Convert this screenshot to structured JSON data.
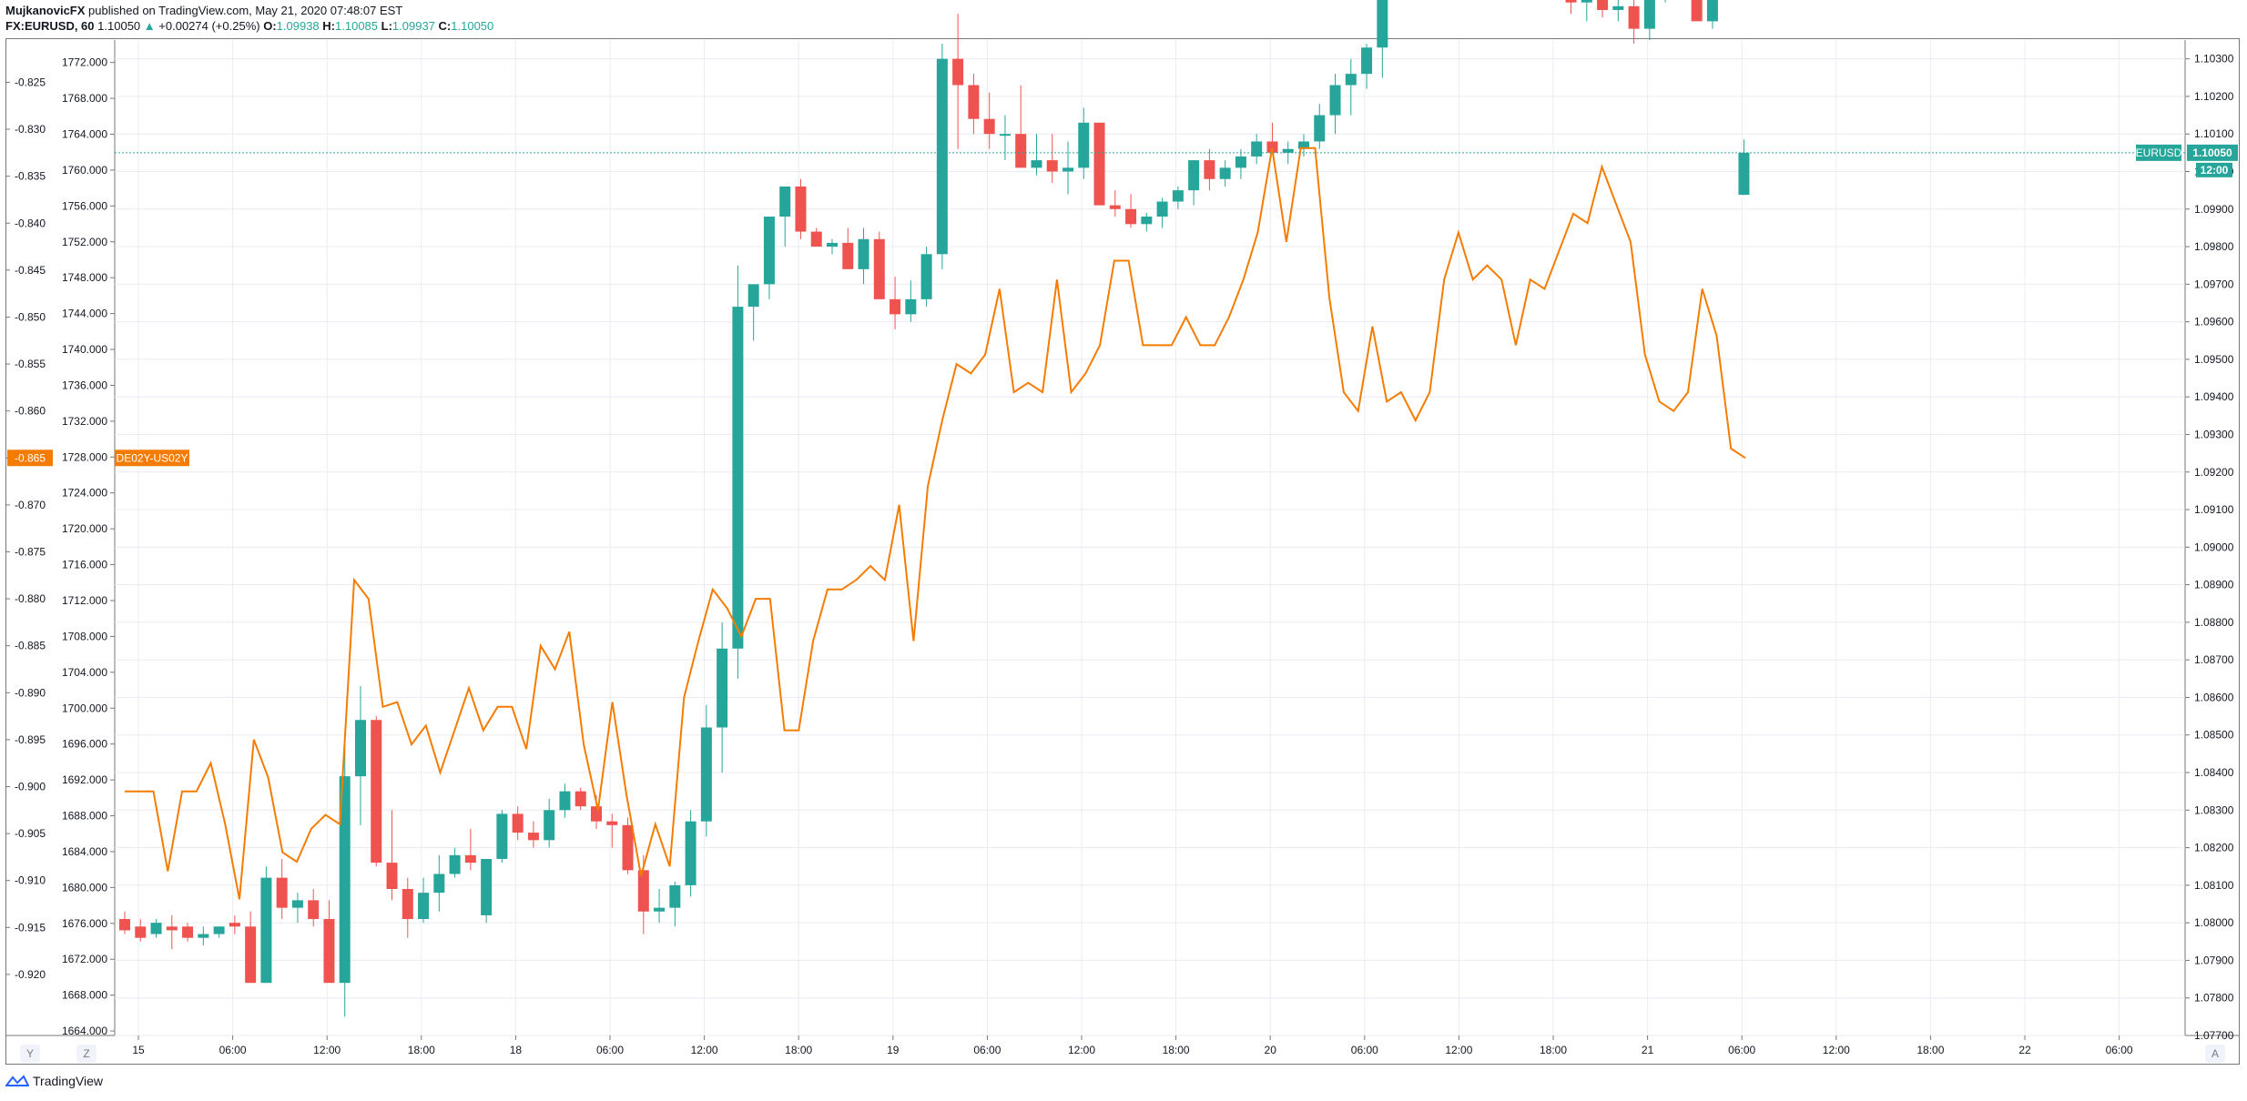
{
  "header": {
    "author": "MujkanovicFX",
    "published": "published on TradingView.com, May 21, 2020 07:48:07 EST",
    "symbol": "FX:EURUSD, 60",
    "last": "1.10050",
    "change_arrow": "▲",
    "change": "+0.00274 (+0.25%)",
    "o_label": "O:",
    "o_value": "1.09938",
    "h_label": "H:",
    "h_value": "1.10085",
    "l_label": "L:",
    "l_value": "1.09937",
    "c_label": "C:",
    "c_value": "1.10050"
  },
  "buttons": {
    "y": "Y",
    "z": "Z",
    "a": "A"
  },
  "footer": {
    "brand": "TradingView"
  },
  "colors": {
    "up": "#26a69a",
    "down": "#ef5350",
    "spread": "#f57c00",
    "grid": "#e9ecf2"
  },
  "chart_data": {
    "type": "candlestick",
    "series_primary": {
      "name": "EURUSD",
      "last_label": "1.10050",
      "countdown": "12:00",
      "axis": "right",
      "ylim": [
        1.077,
        1.1035
      ]
    },
    "series_overlay": {
      "name": "DE02Y-US02Y",
      "last_label": "-0.865",
      "axis": "left-outer",
      "ylim": [
        -0.9265,
        -0.8205
      ]
    },
    "middle_axis": {
      "ylim": [
        1663.5,
        1774.5
      ]
    },
    "left_ticks": [
      "-0.825",
      "-0.830",
      "-0.835",
      "-0.840",
      "-0.845",
      "-0.850",
      "-0.855",
      "-0.860",
      "-0.865",
      "-0.870",
      "-0.875",
      "-0.880",
      "-0.885",
      "-0.890",
      "-0.895",
      "-0.900",
      "-0.905",
      "-0.910",
      "-0.915",
      "-0.920"
    ],
    "middle_ticks": [
      "1772.000",
      "1768.000",
      "1764.000",
      "1760.000",
      "1756.000",
      "1752.000",
      "1748.000",
      "1744.000",
      "1740.000",
      "1736.000",
      "1732.000",
      "1728.000",
      "1724.000",
      "1720.000",
      "1716.000",
      "1712.000",
      "1708.000",
      "1704.000",
      "1700.000",
      "1696.000",
      "1692.000",
      "1688.000",
      "1684.000",
      "1680.000",
      "1676.000",
      "1672.000",
      "1668.000",
      "1664.000"
    ],
    "right_ticks": [
      "1.10300",
      "1.10200",
      "1.10100",
      "1.10000",
      "1.09900",
      "1.09800",
      "1.09700",
      "1.09600",
      "1.09500",
      "1.09400",
      "1.09300",
      "1.09200",
      "1.09100",
      "1.09000",
      "1.08900",
      "1.08800",
      "1.08700",
      "1.08600",
      "1.08500",
      "1.08400",
      "1.08300",
      "1.08200",
      "1.08100",
      "1.08000",
      "1.07900",
      "1.07800",
      "1.07700"
    ],
    "x_ticks": [
      "15",
      "06:00",
      "12:00",
      "18:00",
      "18",
      "06:00",
      "12:00",
      "18:00",
      "19",
      "06:00",
      "12:00",
      "18:00",
      "20",
      "06:00",
      "12:00",
      "18:00",
      "21",
      "06:00",
      "12:00",
      "18:00",
      "22",
      "06:00"
    ],
    "candles_ohlc": [
      [
        1.0801,
        1.0803,
        1.0797,
        1.0798
      ],
      [
        1.0799,
        1.0801,
        1.0795,
        1.0796
      ],
      [
        1.0797,
        1.0801,
        1.0796,
        1.08
      ],
      [
        1.0799,
        1.0802,
        1.0793,
        1.0798
      ],
      [
        1.0799,
        1.08,
        1.0795,
        1.0796
      ],
      [
        1.0796,
        1.0799,
        1.0794,
        1.0797
      ],
      [
        1.0797,
        1.0799,
        1.0796,
        1.0799
      ],
      [
        1.08,
        1.0802,
        1.0797,
        1.0799
      ],
      [
        1.0799,
        1.0803,
        1.0788,
        1.0784
      ],
      [
        1.0784,
        1.0815,
        1.0784,
        1.0812
      ],
      [
        1.0812,
        1.0817,
        1.0801,
        1.0804
      ],
      [
        1.0804,
        1.0808,
        1.08,
        1.0806
      ],
      [
        1.0806,
        1.0809,
        1.0799,
        1.0801
      ],
      [
        1.0801,
        1.0806,
        1.079,
        1.0784
      ],
      [
        1.0784,
        1.0847,
        1.0775,
        1.0839
      ],
      [
        1.0839,
        1.0863,
        1.0826,
        1.0854
      ],
      [
        1.0854,
        1.0855,
        1.0815,
        1.0816
      ],
      [
        1.0816,
        1.083,
        1.0806,
        1.0809
      ],
      [
        1.0809,
        1.0812,
        1.0796,
        1.0801
      ],
      [
        1.0801,
        1.0812,
        1.08,
        1.0808
      ],
      [
        1.0808,
        1.0818,
        1.0803,
        1.0813
      ],
      [
        1.0813,
        1.082,
        1.0812,
        1.0818
      ],
      [
        1.0818,
        1.0825,
        1.0814,
        1.0816
      ],
      [
        1.0802,
        1.0817,
        1.08,
        1.0817
      ],
      [
        1.0817,
        1.083,
        1.0816,
        1.0829
      ],
      [
        1.0829,
        1.0831,
        1.0822,
        1.0824
      ],
      [
        1.0824,
        1.0827,
        1.082,
        1.0822
      ],
      [
        1.0822,
        1.0833,
        1.082,
        1.083
      ],
      [
        1.083,
        1.0837,
        1.0828,
        1.0835
      ],
      [
        1.0835,
        1.0836,
        1.083,
        1.0831
      ],
      [
        1.0831,
        1.0834,
        1.0825,
        1.0827
      ],
      [
        1.0827,
        1.0829,
        1.082,
        1.0826
      ],
      [
        1.0826,
        1.0828,
        1.0813,
        1.0814
      ],
      [
        1.0814,
        1.0818,
        1.0797,
        1.0803
      ],
      [
        1.0803,
        1.0809,
        1.08,
        1.0804
      ],
      [
        1.0804,
        1.0811,
        1.0799,
        1.081
      ],
      [
        1.081,
        1.083,
        1.0807,
        1.0827
      ],
      [
        1.0827,
        1.0858,
        1.0823,
        1.0852
      ],
      [
        1.0852,
        1.088,
        1.084,
        1.0873
      ],
      [
        1.0873,
        1.0975,
        1.0865,
        1.0964
      ],
      [
        1.0964,
        1.0969,
        1.0955,
        1.097
      ],
      [
        1.097,
        1.0985,
        1.0966,
        1.0988
      ],
      [
        1.0988,
        1.0992,
        1.098,
        1.0996
      ],
      [
        1.0996,
        1.0998,
        1.0982,
        1.0984
      ],
      [
        1.0984,
        1.0985,
        1.0981,
        1.098
      ],
      [
        1.098,
        1.0982,
        1.0978,
        1.0981
      ],
      [
        1.0981,
        1.0985,
        1.0976,
        1.0974
      ],
      [
        1.0974,
        1.0985,
        1.097,
        1.0982
      ],
      [
        1.0982,
        1.0984,
        1.0966,
        1.0966
      ],
      [
        1.0966,
        1.0972,
        1.0958,
        1.0962
      ],
      [
        1.0962,
        1.0971,
        1.096,
        1.0966
      ],
      [
        1.0966,
        1.098,
        1.0964,
        1.0978
      ],
      [
        1.0978,
        1.1034,
        1.0974,
        1.103
      ],
      [
        1.103,
        1.1042,
        1.1006,
        1.1023
      ],
      [
        1.1023,
        1.1026,
        1.101,
        1.1014
      ],
      [
        1.1014,
        1.1021,
        1.1006,
        1.101
      ],
      [
        1.101,
        1.1015,
        1.1003,
        1.101
      ],
      [
        1.101,
        1.1023,
        1.1001,
        1.1001
      ],
      [
        1.1001,
        1.101,
        1.0999,
        1.1003
      ],
      [
        1.1003,
        1.101,
        1.0997,
        1.1
      ],
      [
        1.1,
        1.1008,
        1.0994,
        1.1001
      ],
      [
        1.1001,
        1.1017,
        1.0998,
        1.1013
      ],
      [
        1.1013,
        1.1011,
        1.0999,
        1.0991
      ],
      [
        1.0991,
        1.0995,
        1.0988,
        1.099
      ],
      [
        1.099,
        1.0994,
        1.0985,
        1.0986
      ],
      [
        1.0986,
        1.0989,
        1.0984,
        1.0988
      ],
      [
        1.0988,
        1.0993,
        1.0985,
        1.0992
      ],
      [
        1.0992,
        1.0996,
        1.099,
        1.0995
      ],
      [
        1.0995,
        1.1003,
        1.0991,
        1.1003
      ],
      [
        1.1003,
        1.1006,
        1.0995,
        1.0998
      ],
      [
        1.0998,
        1.1003,
        1.0996,
        1.1001
      ],
      [
        1.1001,
        1.1006,
        1.0998,
        1.1004
      ],
      [
        1.1004,
        1.101,
        1.1002,
        1.1008
      ],
      [
        1.1008,
        1.1013,
        1.1005,
        1.1005
      ],
      [
        1.1005,
        1.1008,
        1.1002,
        1.1006
      ],
      [
        1.1006,
        1.101,
        1.1004,
        1.1008
      ],
      [
        1.1008,
        1.1018,
        1.1006,
        1.1015
      ],
      [
        1.1015,
        1.1026,
        1.101,
        1.1023
      ],
      [
        1.1023,
        1.103,
        1.1015,
        1.1026
      ],
      [
        1.1026,
        1.1034,
        1.1022,
        1.1033
      ],
      [
        1.1033,
        1.1042,
        1.1025,
        1.1048
      ],
      [
        1.1048,
        1.1062,
        1.1046,
        1.1064
      ],
      [
        1.1064,
        1.1074,
        1.1058,
        1.1063
      ],
      [
        1.1063,
        1.1068,
        1.1056,
        1.1058
      ],
      [
        1.1058,
        1.1065,
        1.1054,
        1.1061
      ],
      [
        1.1061,
        1.1068,
        1.1058,
        1.1066
      ],
      [
        1.1066,
        1.107,
        1.1062,
        1.1063
      ],
      [
        1.1063,
        1.1067,
        1.106,
        1.1061
      ],
      [
        1.1061,
        1.1063,
        1.1058,
        1.1062
      ],
      [
        1.1062,
        1.1064,
        1.1059,
        1.1063
      ],
      [
        1.1063,
        1.1065,
        1.106,
        1.1062
      ],
      [
        1.1062,
        1.1066,
        1.1048,
        1.1052
      ],
      [
        1.1052,
        1.1055,
        1.1042,
        1.1045
      ],
      [
        1.1045,
        1.1049,
        1.104,
        1.1047
      ],
      [
        1.1047,
        1.105,
        1.1041,
        1.1043
      ],
      [
        1.1043,
        1.1046,
        1.104,
        1.1044
      ],
      [
        1.1044,
        1.1047,
        1.1034,
        1.1038
      ],
      [
        1.1038,
        1.105,
        1.1035,
        1.1049
      ],
      [
        1.1049,
        1.1058,
        1.1045,
        1.105
      ],
      [
        1.105,
        1.1055,
        1.1046,
        1.1051
      ],
      [
        1.1051,
        1.1058,
        1.104,
        1.104
      ],
      [
        1.104,
        1.1067,
        1.1038,
        1.1064
      ],
      [
        1.1064,
        1.108,
        1.106,
        1.1076
      ],
      [
        1.09938,
        1.10085,
        1.09937,
        1.1005
      ]
    ],
    "overlay_values": [
      -0.9005,
      -0.9005,
      -0.9005,
      -0.909,
      -0.9005,
      -0.9005,
      -0.8975,
      -0.904,
      -0.912,
      -0.895,
      -0.899,
      -0.907,
      -0.908,
      -0.9045,
      -0.903,
      -0.904,
      -0.878,
      -0.88,
      -0.8915,
      -0.891,
      -0.8955,
      -0.8935,
      -0.8985,
      -0.894,
      -0.8895,
      -0.894,
      -0.8915,
      -0.8915,
      -0.896,
      -0.885,
      -0.8875,
      -0.8835,
      -0.8955,
      -0.9025,
      -0.891,
      -0.901,
      -0.9095,
      -0.904,
      -0.9085,
      -0.8905,
      -0.8845,
      -0.879,
      -0.881,
      -0.884,
      -0.88,
      -0.88,
      -0.894,
      -0.894,
      -0.8845,
      -0.879,
      -0.879,
      -0.878,
      -0.8765,
      -0.878,
      -0.87,
      -0.8845,
      -0.868,
      -0.861,
      -0.855,
      -0.856,
      -0.854,
      -0.847,
      -0.858,
      -0.857,
      -0.858,
      -0.846,
      -0.858,
      -0.856,
      -0.853,
      -0.844,
      -0.844,
      -0.853,
      -0.853,
      -0.853,
      -0.85,
      -0.853,
      -0.853,
      -0.85,
      -0.846,
      -0.841,
      -0.832,
      -0.842,
      -0.832,
      -0.832,
      -0.848,
      -0.858,
      -0.86,
      -0.851,
      -0.859,
      -0.858,
      -0.861,
      -0.858,
      -0.846,
      -0.841,
      -0.846,
      -0.8445,
      -0.846,
      -0.853,
      -0.846,
      -0.847,
      -0.843,
      -0.839,
      -0.84,
      -0.834,
      -0.838,
      -0.842,
      -0.854,
      -0.859,
      -0.86,
      -0.858,
      -0.847,
      -0.852,
      -0.864,
      -0.865
    ]
  }
}
